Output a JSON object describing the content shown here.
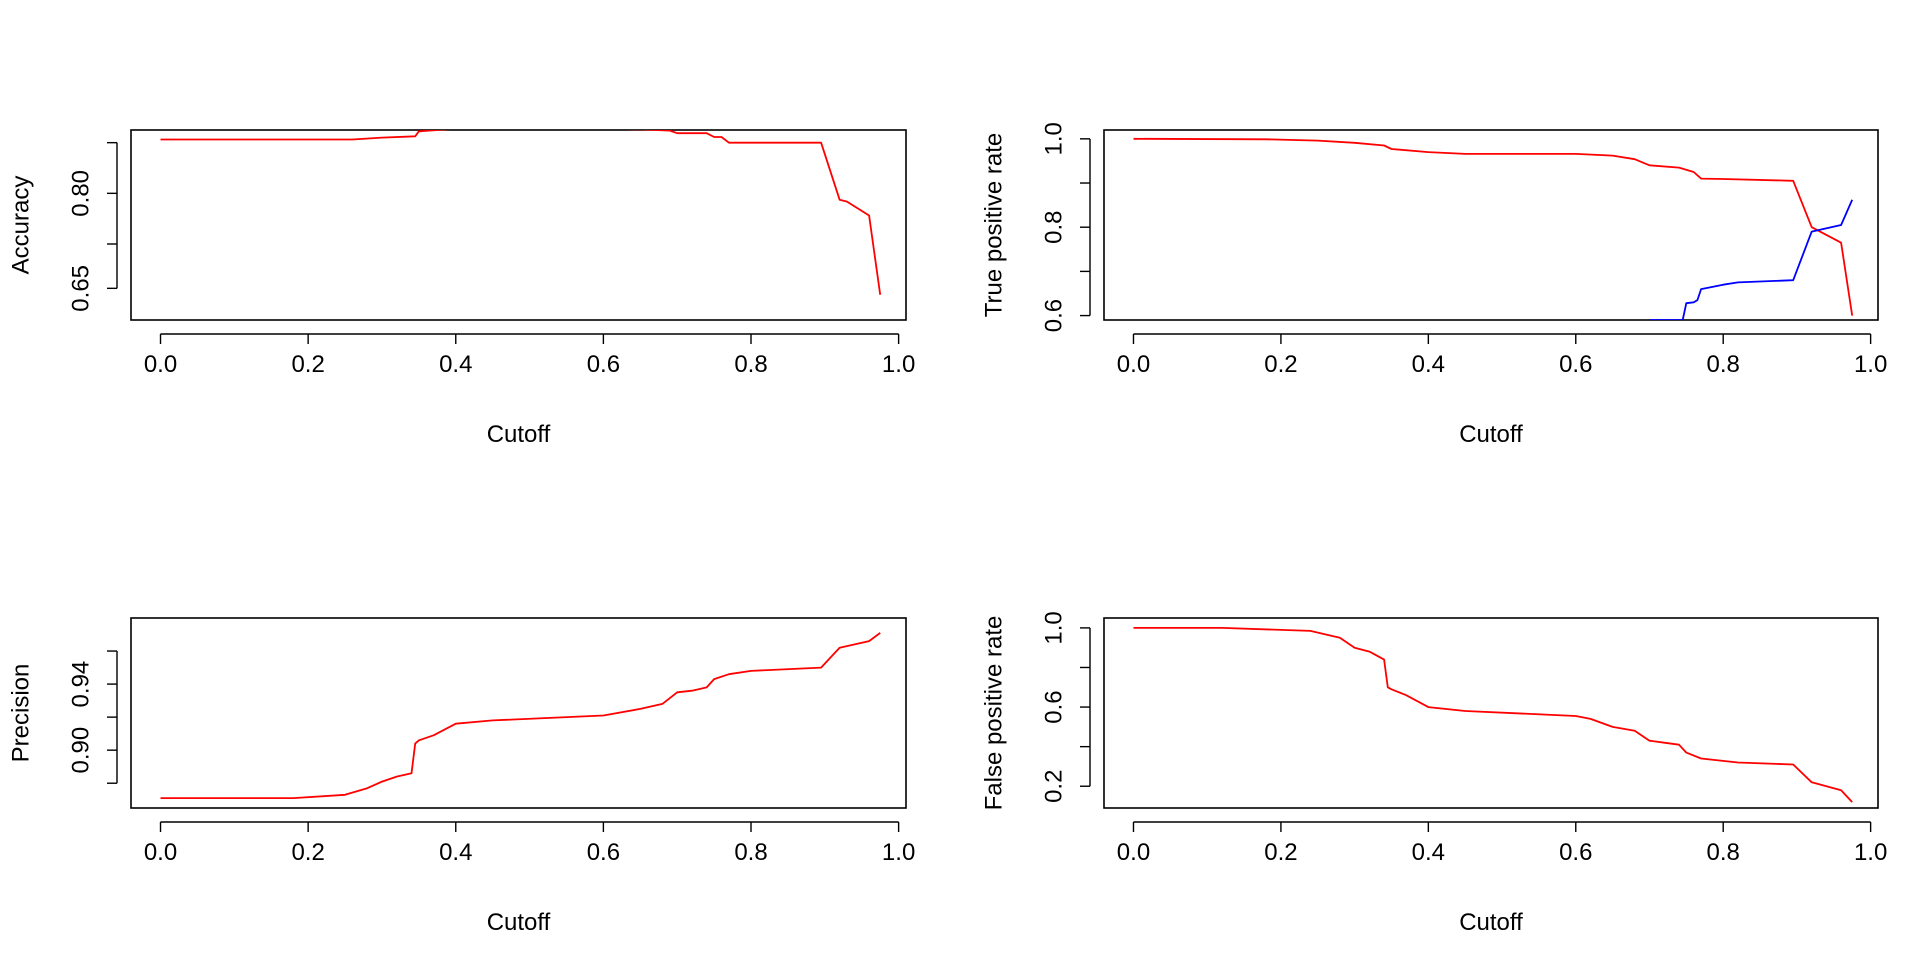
{
  "chart_data": [
    {
      "type": "line",
      "xlabel": "Cutoff",
      "ylabel": "Accuracy",
      "xlim": [
        -0.04,
        1.01
      ],
      "ylim": [
        0.6,
        0.9
      ],
      "xticks": [
        0,
        0.2,
        0.4,
        0.6,
        0.8,
        1
      ],
      "xtick_labels": [
        "0.0",
        "0.2",
        "0.4",
        "0.6",
        "0.8",
        "1.0"
      ],
      "yticks": [
        0.65,
        0.72,
        0.8,
        0.88
      ],
      "ytick_labels": [
        "0.65",
        "",
        "0.80",
        ""
      ],
      "grid": false,
      "series": [
        {
          "color": "#ff0000",
          "x": [
            0.0,
            0.26,
            0.3,
            0.345,
            0.35,
            0.4,
            0.6,
            0.65,
            0.69,
            0.7,
            0.74,
            0.75,
            0.76,
            0.77,
            0.88,
            0.895,
            0.92,
            0.93,
            0.96,
            0.975
          ],
          "y": [
            0.885,
            0.885,
            0.888,
            0.89,
            0.898,
            0.902,
            0.902,
            0.901,
            0.899,
            0.895,
            0.895,
            0.889,
            0.889,
            0.88,
            0.88,
            0.88,
            0.79,
            0.787,
            0.765,
            0.64
          ]
        }
      ]
    },
    {
      "type": "line",
      "xlabel": "Cutoff",
      "ylabel": "True positive rate",
      "xlim": [
        -0.04,
        1.01
      ],
      "ylim": [
        0.59,
        1.02
      ],
      "xticks": [
        0,
        0.2,
        0.4,
        0.6,
        0.8,
        1
      ],
      "xtick_labels": [
        "0.0",
        "0.2",
        "0.4",
        "0.6",
        "0.8",
        "1.0"
      ],
      "yticks": [
        0.6,
        0.7,
        0.8,
        0.9,
        1.0
      ],
      "ytick_labels": [
        "0.6",
        "",
        "0.8",
        "",
        "1.0"
      ],
      "grid": false,
      "series": [
        {
          "color": "#ff0000",
          "x": [
            0.0,
            0.18,
            0.25,
            0.3,
            0.34,
            0.35,
            0.4,
            0.45,
            0.6,
            0.65,
            0.68,
            0.7,
            0.74,
            0.76,
            0.77,
            0.8,
            0.895,
            0.92,
            0.96,
            0.975
          ],
          "y": [
            1.0,
            0.999,
            0.996,
            0.991,
            0.985,
            0.977,
            0.97,
            0.966,
            0.966,
            0.962,
            0.954,
            0.94,
            0.935,
            0.925,
            0.91,
            0.909,
            0.905,
            0.8,
            0.765,
            0.6
          ]
        },
        {
          "color": "#0000ff",
          "x": [
            0.7,
            0.745,
            0.75,
            0.76,
            0.765,
            0.77,
            0.8,
            0.82,
            0.895,
            0.92,
            0.96,
            0.975
          ],
          "y": [
            0.59,
            0.59,
            0.628,
            0.63,
            0.635,
            0.66,
            0.67,
            0.675,
            0.68,
            0.79,
            0.805,
            0.862
          ]
        }
      ]
    },
    {
      "type": "line",
      "xlabel": "Cutoff",
      "ylabel": "Precision",
      "xlim": [
        -0.04,
        1.01
      ],
      "ylim": [
        0.865,
        0.98
      ],
      "xticks": [
        0,
        0.2,
        0.4,
        0.6,
        0.8,
        1
      ],
      "xtick_labels": [
        "0.0",
        "0.2",
        "0.4",
        "0.6",
        "0.8",
        "1.0"
      ],
      "yticks": [
        0.88,
        0.9,
        0.92,
        0.94,
        0.96
      ],
      "ytick_labels": [
        "",
        "0.90",
        "",
        "0.94",
        ""
      ],
      "grid": false,
      "series": [
        {
          "color": "#ff0000",
          "x": [
            0.0,
            0.18,
            0.25,
            0.28,
            0.3,
            0.32,
            0.34,
            0.345,
            0.35,
            0.37,
            0.4,
            0.45,
            0.6,
            0.65,
            0.68,
            0.7,
            0.72,
            0.74,
            0.75,
            0.77,
            0.8,
            0.895,
            0.92,
            0.96,
            0.975
          ],
          "y": [
            0.871,
            0.871,
            0.873,
            0.877,
            0.881,
            0.884,
            0.886,
            0.904,
            0.906,
            0.909,
            0.916,
            0.918,
            0.921,
            0.925,
            0.928,
            0.935,
            0.936,
            0.938,
            0.943,
            0.946,
            0.948,
            0.95,
            0.962,
            0.966,
            0.971
          ]
        }
      ]
    },
    {
      "type": "line",
      "xlabel": "Cutoff",
      "ylabel": "False positive rate",
      "xlim": [
        -0.04,
        1.01
      ],
      "ylim": [
        0.09,
        1.05
      ],
      "xticks": [
        0,
        0.2,
        0.4,
        0.6,
        0.8,
        1
      ],
      "xtick_labels": [
        "0.0",
        "0.2",
        "0.4",
        "0.6",
        "0.8",
        "1.0"
      ],
      "yticks": [
        0.2,
        0.4,
        0.6,
        0.8,
        1.0
      ],
      "ytick_labels": [
        "0.2",
        "",
        "0.6",
        "",
        "1.0"
      ],
      "grid": false,
      "series": [
        {
          "color": "#ff0000",
          "x": [
            0.0,
            0.12,
            0.24,
            0.28,
            0.3,
            0.32,
            0.34,
            0.345,
            0.35,
            0.37,
            0.4,
            0.45,
            0.6,
            0.62,
            0.65,
            0.68,
            0.7,
            0.72,
            0.74,
            0.75,
            0.77,
            0.82,
            0.895,
            0.92,
            0.96,
            0.975
          ],
          "y": [
            1.0,
            1.0,
            0.985,
            0.95,
            0.9,
            0.88,
            0.84,
            0.7,
            0.69,
            0.66,
            0.6,
            0.58,
            0.555,
            0.54,
            0.5,
            0.48,
            0.43,
            0.42,
            0.41,
            0.37,
            0.34,
            0.32,
            0.31,
            0.22,
            0.18,
            0.12
          ]
        }
      ]
    }
  ]
}
